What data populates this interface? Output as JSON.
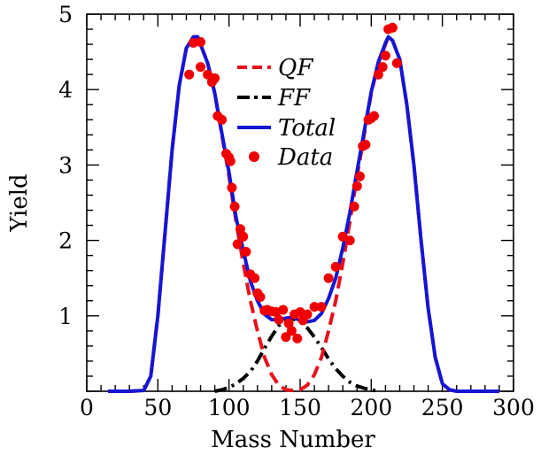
{
  "chart_data": {
    "type": "line",
    "xlabel": "Mass Number",
    "ylabel": "Yield",
    "xlim": [
      0,
      300
    ],
    "ylim": [
      0,
      5
    ],
    "x_ticks": [
      0,
      50,
      100,
      150,
      200,
      250,
      300
    ],
    "y_ticks": [
      1,
      2,
      3,
      4,
      5
    ],
    "x_tick_labels": [
      "0",
      "50",
      "100",
      "150",
      "200",
      "250",
      "300"
    ],
    "y_tick_labels": [
      "1",
      "2",
      "3",
      "4",
      "5"
    ],
    "grid": false,
    "legend_position": "top-center",
    "series": [
      {
        "name": "QF",
        "kind": "line",
        "style": "dashed",
        "color": "#e8101a",
        "x": [
          15,
          30,
          40,
          45,
          50,
          55,
          60,
          65,
          70,
          75,
          78,
          80,
          85,
          90,
          95,
          100,
          105,
          110,
          115,
          120,
          125,
          130,
          135,
          140,
          145,
          150,
          155,
          160,
          165,
          170,
          175,
          180,
          185,
          190,
          195,
          200,
          205,
          210,
          212,
          215,
          220,
          225,
          230,
          235,
          240,
          245,
          250,
          255,
          260,
          270,
          290
        ],
        "y": [
          0,
          0,
          0.01,
          0.2,
          1.0,
          2.1,
          3.2,
          4.05,
          4.55,
          4.7,
          4.7,
          4.6,
          4.35,
          3.95,
          3.4,
          2.85,
          2.25,
          1.7,
          1.2,
          0.8,
          0.45,
          0.22,
          0.08,
          0.02,
          0.01,
          0.02,
          0.08,
          0.22,
          0.45,
          0.8,
          1.2,
          1.7,
          2.25,
          2.85,
          3.4,
          3.95,
          4.35,
          4.6,
          4.7,
          4.65,
          4.4,
          3.8,
          3.0,
          2.0,
          1.1,
          0.45,
          0.1,
          0.02,
          0,
          0,
          0
        ]
      },
      {
        "name": "FF",
        "kind": "line",
        "style": "dashdot",
        "color": "#000000",
        "x": [
          90,
          95,
          100,
          105,
          110,
          115,
          120,
          125,
          130,
          135,
          140,
          143,
          145,
          150,
          155,
          160,
          165,
          170,
          175,
          180,
          185,
          190,
          195,
          200,
          205
        ],
        "y": [
          0,
          0.02,
          0.05,
          0.1,
          0.17,
          0.26,
          0.4,
          0.57,
          0.73,
          0.87,
          0.95,
          0.97,
          0.96,
          0.92,
          0.84,
          0.72,
          0.58,
          0.43,
          0.3,
          0.2,
          0.12,
          0.07,
          0.04,
          0.02,
          0
        ]
      },
      {
        "name": "Total",
        "kind": "line",
        "style": "solid",
        "color": "#1515d4",
        "x": [
          15,
          30,
          40,
          45,
          50,
          55,
          60,
          65,
          70,
          75,
          78,
          80,
          85,
          90,
          95,
          100,
          105,
          110,
          115,
          120,
          125,
          130,
          135,
          140,
          145,
          150,
          155,
          160,
          165,
          170,
          175,
          180,
          185,
          190,
          195,
          200,
          205,
          210,
          212,
          215,
          220,
          225,
          230,
          235,
          240,
          245,
          250,
          255,
          260,
          270,
          290
        ],
        "y": [
          0,
          0,
          0.01,
          0.2,
          1.0,
          2.1,
          3.2,
          4.05,
          4.55,
          4.7,
          4.7,
          4.6,
          4.35,
          3.95,
          3.42,
          2.9,
          2.3,
          1.87,
          1.46,
          1.2,
          1.02,
          0.95,
          0.95,
          0.97,
          0.98,
          0.94,
          0.92,
          0.94,
          1.03,
          1.23,
          1.5,
          1.9,
          2.37,
          2.92,
          3.44,
          3.97,
          4.37,
          4.62,
          4.7,
          4.65,
          4.4,
          3.8,
          3.0,
          2.0,
          1.1,
          0.45,
          0.1,
          0.02,
          0,
          0,
          0
        ]
      },
      {
        "name": "Data",
        "kind": "scatter",
        "color": "#f00000",
        "x": [
          72,
          75,
          80,
          80,
          85,
          88,
          90,
          92,
          95,
          98,
          100,
          101,
          102,
          104,
          106,
          108,
          110,
          112,
          115,
          118,
          120,
          122,
          125,
          127,
          130,
          133,
          135,
          138,
          140,
          142,
          144,
          146,
          148,
          150,
          152,
          155,
          160,
          165,
          170,
          175,
          180,
          185,
          188,
          190,
          192,
          194,
          196,
          198,
          200,
          202,
          205,
          208,
          210,
          212,
          215,
          218
        ],
        "y": [
          4.2,
          4.62,
          4.63,
          4.3,
          4.2,
          4.1,
          4.15,
          3.65,
          3.6,
          3.15,
          3.1,
          3.05,
          2.7,
          2.45,
          1.95,
          2.15,
          2.05,
          1.85,
          1.55,
          1.5,
          1.3,
          1.25,
          1.07,
          1.08,
          1.06,
          1.05,
          0.95,
          1.08,
          0.72,
          0.9,
          0.8,
          1.02,
          0.7,
          1.05,
          0.94,
          1.02,
          1.12,
          1.12,
          1.5,
          1.65,
          2.05,
          2.0,
          2.45,
          2.72,
          2.85,
          3.25,
          3.27,
          3.6,
          3.62,
          3.65,
          4.2,
          4.3,
          4.45,
          4.8,
          4.82,
          4.35
        ]
      }
    ]
  }
}
